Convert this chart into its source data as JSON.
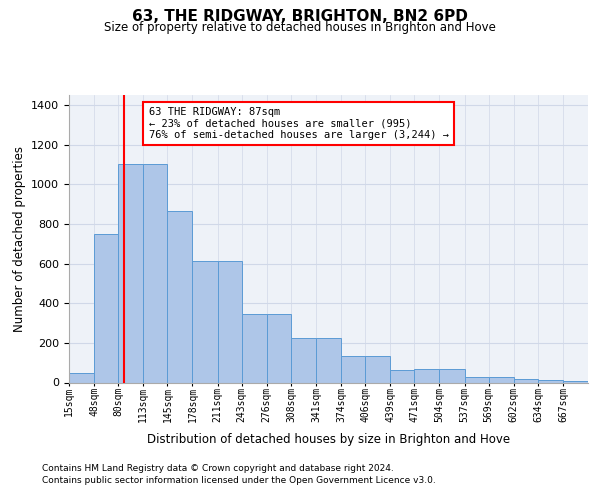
{
  "title": "63, THE RIDGWAY, BRIGHTON, BN2 6PD",
  "subtitle": "Size of property relative to detached houses in Brighton and Hove",
  "xlabel": "Distribution of detached houses by size in Brighton and Hove",
  "ylabel": "Number of detached properties",
  "footer_line1": "Contains HM Land Registry data © Crown copyright and database right 2024.",
  "footer_line2": "Contains public sector information licensed under the Open Government Licence v3.0.",
  "bar_labels": [
    "15sqm",
    "48sqm",
    "80sqm",
    "113sqm",
    "145sqm",
    "178sqm",
    "211sqm",
    "243sqm",
    "276sqm",
    "308sqm",
    "341sqm",
    "374sqm",
    "406sqm",
    "439sqm",
    "471sqm",
    "504sqm",
    "537sqm",
    "569sqm",
    "602sqm",
    "634sqm",
    "667sqm"
  ],
  "bin_edges": [
    15,
    48,
    80,
    113,
    145,
    178,
    211,
    243,
    276,
    308,
    341,
    374,
    406,
    439,
    471,
    504,
    537,
    569,
    602,
    634,
    667,
    700
  ],
  "bar_values": [
    50,
    750,
    1100,
    1100,
    865,
    615,
    615,
    345,
    345,
    225,
    225,
    135,
    135,
    65,
    70,
    70,
    30,
    30,
    20,
    15,
    10
  ],
  "bar_color": "#aec6e8",
  "bar_edge_color": "#5b9bd5",
  "grid_color": "#d0d8e8",
  "background_color": "#eef2f8",
  "property_sqm": 87,
  "property_label": "63 THE RIDGWAY: 87sqm",
  "annotation_line1": "← 23% of detached houses are smaller (995)",
  "annotation_line2": "76% of semi-detached houses are larger (3,244) →",
  "ylim_max": 1450,
  "yticks": [
    0,
    200,
    400,
    600,
    800,
    1000,
    1200,
    1400
  ]
}
